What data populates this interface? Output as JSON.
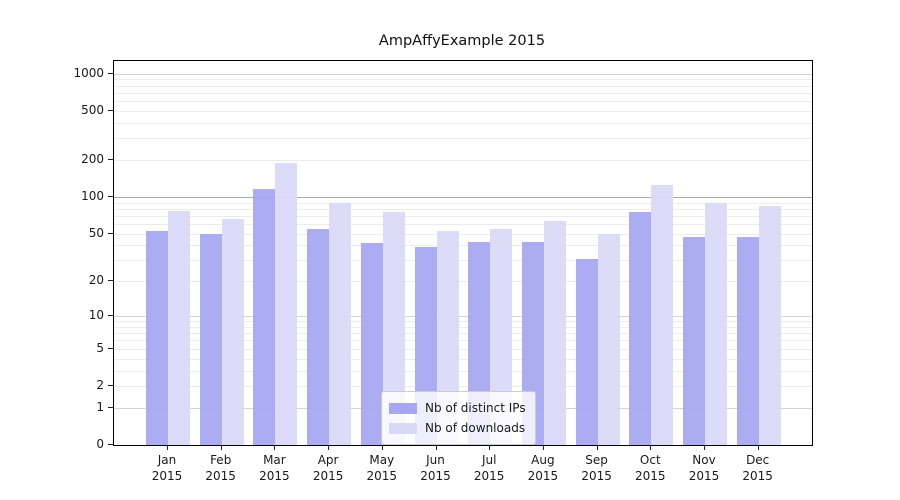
{
  "title": "AmpAffyExample 2015",
  "chart_data": {
    "type": "bar",
    "title": "AmpAffyExample 2015",
    "categories": [
      "Jan 2015",
      "Feb 2015",
      "Mar 2015",
      "Apr 2015",
      "May 2015",
      "Jun 2015",
      "Jul 2015",
      "Aug 2015",
      "Sep 2015",
      "Oct 2015",
      "Nov 2015",
      "Dec 2015"
    ],
    "series": [
      {
        "name": "Nb of distinct IPs",
        "color": "#a6a6f2",
        "values": [
          53,
          50,
          115,
          55,
          42,
          39,
          43,
          43,
          31,
          75,
          47,
          47
        ]
      },
      {
        "name": "Nb of downloads",
        "color": "#d9d9f7",
        "values": [
          77,
          66,
          190,
          90,
          76,
          53,
          55,
          64,
          50,
          124,
          90,
          85
        ]
      }
    ],
    "yscale": "log1p",
    "ylim": [
      0,
      1264
    ],
    "yticks": [
      1000,
      500,
      200,
      100,
      50,
      20,
      10,
      5,
      2,
      1,
      0
    ],
    "grid": true,
    "legend_position": "lower-center"
  },
  "colors": {
    "grid_minor": "#ececec",
    "grid_major": "#d4d4d4",
    "grid_emphasis": "#a9a9a9",
    "spine": "#000000",
    "tick_text": "#1a1a1a"
  }
}
